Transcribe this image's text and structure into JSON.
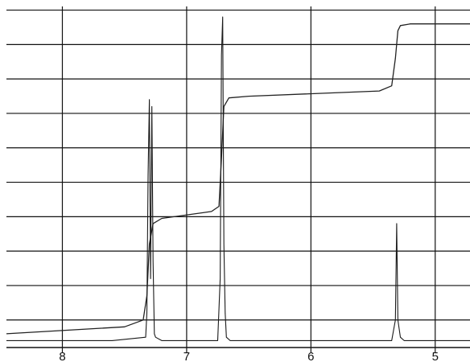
{
  "chart_data": {
    "type": "line",
    "title": "",
    "xlabel": "",
    "ylabel": "",
    "x_reversed": true,
    "xlim": [
      8.45,
      4.72
    ],
    "ylim": [
      0,
      1
    ],
    "grid": true,
    "x_ticks": [
      {
        "value": 8,
        "label": "8"
      },
      {
        "value": 7,
        "label": "7"
      },
      {
        "value": 6,
        "label": "6"
      },
      {
        "value": 5,
        "label": "5"
      }
    ],
    "horizontal_gridlines": [
      0.08,
      0.18,
      0.28,
      0.38,
      0.48,
      0.58,
      0.68,
      0.78,
      0.88,
      0.98
    ],
    "series": [
      {
        "kind": "spectrum",
        "x": [
          8.45,
          7.6,
          7.33,
          7.32,
          7.31,
          7.3,
          7.29,
          7.28,
          7.27,
          7.26,
          7.25,
          7.2,
          6.75,
          6.73,
          6.72,
          6.71,
          6.7,
          6.69,
          6.68,
          6.65,
          5.35,
          5.32,
          5.31,
          5.3,
          5.28,
          5.25,
          4.72
        ],
        "y": [
          0.02,
          0.02,
          0.03,
          0.1,
          0.5,
          0.72,
          0.2,
          0.7,
          0.25,
          0.04,
          0.03,
          0.02,
          0.02,
          0.2,
          0.85,
          0.96,
          0.3,
          0.1,
          0.03,
          0.02,
          0.02,
          0.08,
          0.36,
          0.08,
          0.03,
          0.02,
          0.02
        ]
      },
      {
        "kind": "integral",
        "x": [
          8.45,
          7.5,
          7.35,
          7.32,
          7.3,
          7.27,
          7.2,
          6.8,
          6.74,
          6.72,
          6.7,
          6.66,
          6.5,
          5.45,
          5.35,
          5.32,
          5.3,
          5.28,
          5.2,
          4.72
        ],
        "y": [
          0.04,
          0.06,
          0.08,
          0.15,
          0.3,
          0.36,
          0.375,
          0.395,
          0.41,
          0.55,
          0.7,
          0.725,
          0.73,
          0.745,
          0.76,
          0.84,
          0.92,
          0.935,
          0.94,
          0.94
        ]
      }
    ]
  }
}
